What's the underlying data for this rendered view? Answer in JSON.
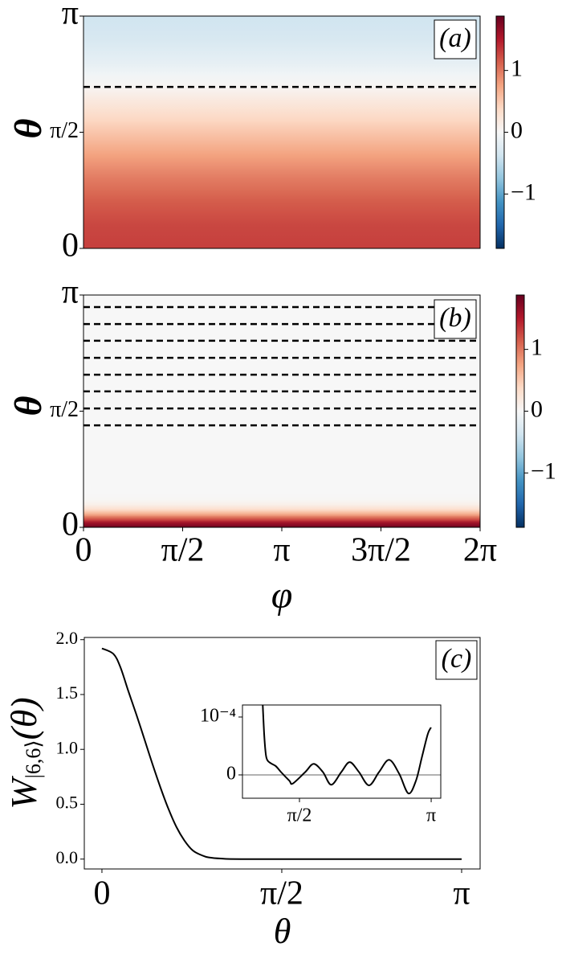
{
  "chart_data": [
    {
      "type": "heatmap",
      "label": "(a)",
      "ylabel": "θ",
      "theta": [
        0,
        0.314,
        0.628,
        0.942,
        1.257,
        1.571,
        1.885,
        2.199,
        2.513,
        2.827,
        3.1416
      ],
      "values": [
        1.3,
        1.26,
        1.15,
        0.98,
        0.77,
        0.53,
        0.28,
        0.03,
        -0.17,
        -0.31,
        -0.38
      ],
      "ylim": [
        0,
        3.1416
      ],
      "yticks": [
        0,
        {
          "value": 1.5708,
          "label": "π/2"
        },
        {
          "value": 3.1416,
          "label": "π"
        }
      ],
      "contours": [
        2.183
      ],
      "colorbar": {
        "lim": [
          -1.88,
          1.88
        ],
        "ticks": [
          {
            "value": -1,
            "label": "−1"
          },
          0,
          1
        ]
      }
    },
    {
      "type": "heatmap",
      "label": "(b)",
      "ylabel": "θ",
      "xlabel": "φ",
      "theta": [
        0,
        0.063,
        0.126,
        0.188,
        0.251,
        0.314,
        0.377,
        0.471,
        0.628,
        3.1416
      ],
      "values": [
        1.85,
        1.6,
        1.1,
        0.65,
        0.3,
        0.1,
        0.02,
        0,
        0,
        0
      ],
      "xlim": [
        0,
        6.2832
      ],
      "xticks": [
        0,
        {
          "value": 1.5708,
          "label": "π/2"
        },
        {
          "value": 3.1416,
          "label": "π"
        },
        {
          "value": 4.7124,
          "label": "3π/2"
        },
        {
          "value": 6.2832,
          "label": "2π"
        }
      ],
      "ylim": [
        0,
        3.1416
      ],
      "yticks": [
        0,
        {
          "value": 1.5708,
          "label": "π/2"
        },
        {
          "value": 3.1416,
          "label": "π"
        }
      ],
      "contours": [
        2.978,
        2.749,
        2.523,
        2.293,
        2.064,
        1.838,
        1.608,
        1.379
      ],
      "colorbar": {
        "lim": [
          -1.88,
          1.88
        ],
        "ticks": [
          {
            "value": -1,
            "label": "−1"
          },
          0,
          1
        ]
      }
    },
    {
      "type": "line",
      "label": "(c)",
      "xlabel": "θ",
      "ylabel": [
        "W",
        "|6,6⟩",
        "(θ)"
      ],
      "color": "#000000",
      "x": [
        0,
        0.1,
        0.161,
        0.231,
        0.3,
        0.372,
        0.44,
        0.512,
        0.58,
        0.652,
        0.72,
        0.792,
        0.86,
        0.933,
        1.05,
        1.213,
        2.0,
        3.1416
      ],
      "values": [
        1.92,
        1.87,
        1.75,
        1.53,
        1.32,
        1.09,
        0.87,
        0.65,
        0.46,
        0.29,
        0.17,
        0.08,
        0.04,
        0.015,
        0.004,
        0,
        0,
        0
      ],
      "xlim": [
        -0.154,
        3.303
      ],
      "ylim": [
        -0.09,
        2.02
      ],
      "xticks": [
        0,
        {
          "value": 1.5708,
          "label": "π/2"
        },
        {
          "value": 3.1416,
          "label": "π"
        }
      ],
      "yticks": [
        {
          "value": 0,
          "label": "0.0"
        },
        0.5,
        {
          "value": 1,
          "label": "1.0"
        },
        1.5,
        {
          "value": 2,
          "label": "2.0"
        }
      ]
    },
    {
      "type": "line",
      "color": "#000000",
      "x": [
        1.13,
        1.15,
        1.17,
        1.19,
        1.23,
        1.29,
        1.35,
        1.45,
        1.49,
        1.64,
        1.74,
        1.85,
        1.95,
        2.07,
        2.17,
        2.28,
        2.4,
        2.52,
        2.64,
        2.76,
        2.87,
        2.96,
        3.03,
        3.1,
        3.14
      ],
      "values": [
        0.00013,
        7e-05,
        3.5e-05,
        2.5e-05,
        2e-05,
        1.5e-05,
        5e-06,
        -1e-05,
        -1.5e-05,
        5e-06,
        1.9e-05,
        5e-06,
        -1.7e-05,
        5e-06,
        2.2e-05,
        5e-06,
        -1.8e-05,
        5e-06,
        2.6e-05,
        2e-06,
        -3.2e-05,
        -1e-05,
        3e-05,
        7e-05,
        8.2e-05
      ],
      "xlim": [
        0.891,
        3.256
      ],
      "ylim": [
        -4.03e-05,
        0.0001208
      ],
      "xticks": [
        {
          "value": 1.5708,
          "label": "π/2"
        },
        {
          "value": 3.1416,
          "label": "π"
        }
      ],
      "yticks": [
        0,
        {
          "value": 0.0001,
          "label": "10⁻⁴"
        }
      ],
      "axhline": 0
    }
  ]
}
